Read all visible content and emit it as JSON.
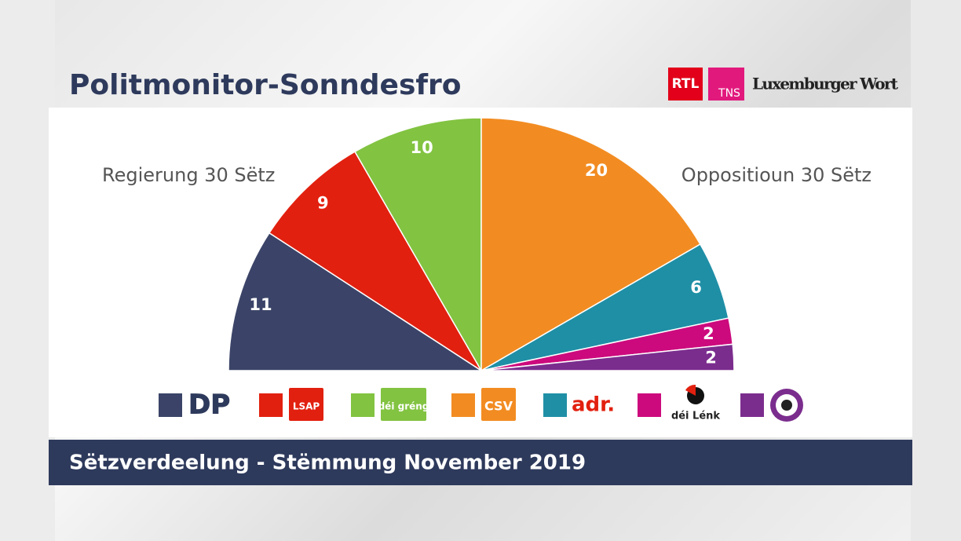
{
  "header": {
    "logos": [
      "RTL",
      "TNS",
      "Luxemburger Wort"
    ]
  },
  "chart_data": {
    "type": "pie",
    "half": true,
    "title": "Politmonitor-Sonndesfro",
    "subtitle": "Sëtzverdeelung - Stëmmung November 2019",
    "annotations": [
      "Regierung 30 Sëtz",
      "Oppositioun 30 Sëtz"
    ],
    "categories": [
      "DP",
      "LSAP",
      "déi gréng",
      "CSV",
      "adr.",
      "déi Lénk",
      null
    ],
    "values": [
      11,
      9,
      10,
      20,
      6,
      2,
      2
    ],
    "colors": [
      "#3b4468",
      "#e2200f",
      "#82c341",
      "#f28c22",
      "#1f8fa6",
      "#cc0a7d",
      "#7b2d8e"
    ]
  }
}
